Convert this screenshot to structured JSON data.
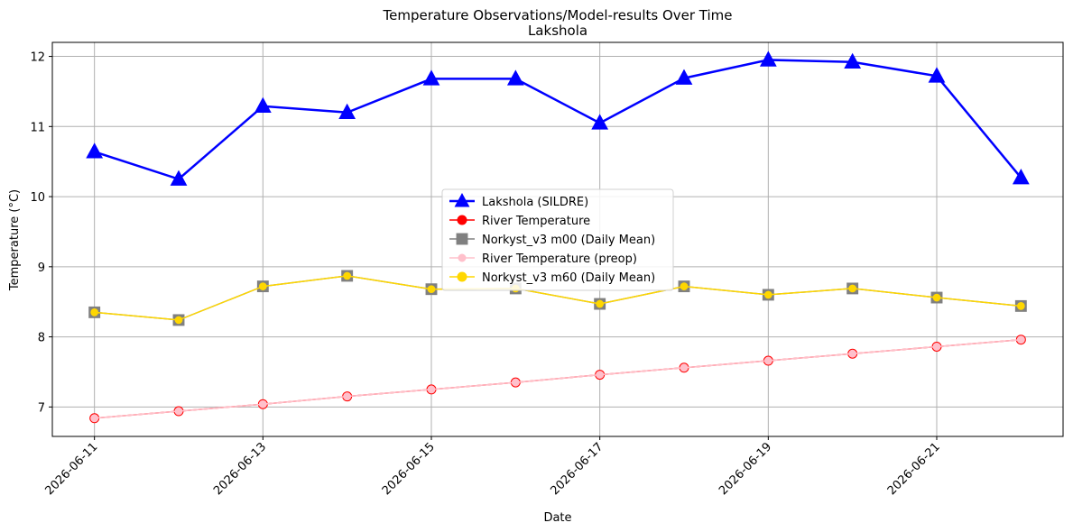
{
  "chart_data": {
    "type": "line",
    "title": "Temperature Observations/Model-results Over Time",
    "subtitle": "Lakshola",
    "xlabel": "Date",
    "ylabel": "Temperature (°C)",
    "x": [
      "2026-06-11",
      "2026-06-12",
      "2026-06-13",
      "2026-06-14",
      "2026-06-15",
      "2026-06-16",
      "2026-06-17",
      "2026-06-18",
      "2026-06-19",
      "2026-06-20",
      "2026-06-21",
      "2026-06-22"
    ],
    "x_tick_labels": [
      "2026-06-11",
      "2026-06-13",
      "2026-06-15",
      "2026-06-17",
      "2026-06-19",
      "2026-06-21"
    ],
    "y_ticks": [
      7,
      8,
      9,
      10,
      11,
      12
    ],
    "ylim": [
      6.58,
      12.2
    ],
    "xlim": [
      "2026-06-10.5",
      "2026-06-22.5"
    ],
    "grid": true,
    "legend_position": "center",
    "series": [
      {
        "name": "Lakshola (SILDRE)",
        "color": "#0000ff",
        "marker": "triangle",
        "values": [
          10.64,
          10.25,
          11.29,
          11.2,
          11.68,
          11.68,
          11.05,
          11.69,
          11.95,
          11.92,
          11.72,
          10.27
        ]
      },
      {
        "name": "River Temperature",
        "color": "#ff0000",
        "marker": "circle",
        "values": [
          6.84,
          6.94,
          7.04,
          7.15,
          7.25,
          7.35,
          7.46,
          7.56,
          7.66,
          7.76,
          7.86,
          7.96
        ]
      },
      {
        "name": "Norkyst_v3 m00 (Daily Mean)",
        "color": "#808080",
        "marker": "square",
        "values": [
          8.35,
          8.24,
          8.72,
          8.87,
          8.68,
          8.69,
          8.47,
          8.72,
          8.6,
          8.69,
          8.56,
          8.44
        ]
      },
      {
        "name": "River Temperature (preop)",
        "color": "#ffc0cb",
        "marker": "circle",
        "values": [
          6.84,
          6.94,
          7.04,
          7.15,
          7.25,
          7.35,
          7.46,
          7.56,
          7.66,
          7.76,
          7.86,
          7.96
        ]
      },
      {
        "name": "Norkyst_v3 m60 (Daily Mean)",
        "color": "#ffd700",
        "marker": "circle",
        "values": [
          8.35,
          8.24,
          8.72,
          8.87,
          8.68,
          8.69,
          8.47,
          8.72,
          8.6,
          8.69,
          8.56,
          8.44
        ]
      }
    ]
  }
}
